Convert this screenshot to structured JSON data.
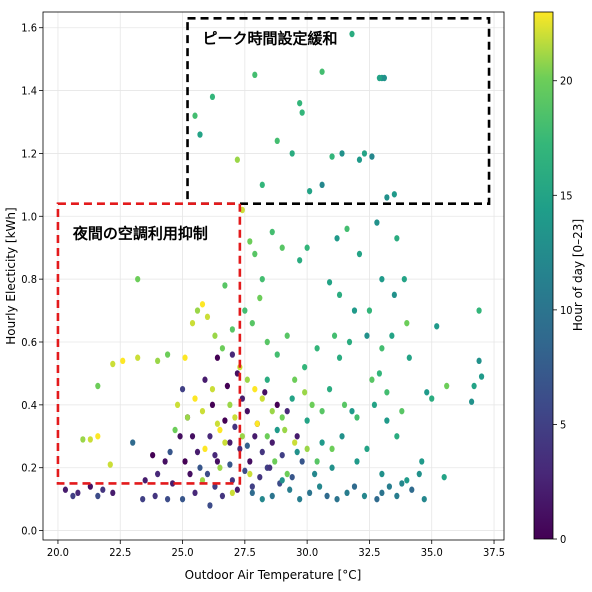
{
  "chart_data": {
    "type": "scatter",
    "xlabel": "Outdoor Air Temperature [°C]",
    "ylabel": "Hourly Electicity [kWh]",
    "colorbar_label": "Hour of day [0–23]",
    "colormap": "viridis",
    "xlim": [
      19.4,
      37.9
    ],
    "ylim": [
      -0.03,
      1.65
    ],
    "x_ticks": [
      20.0,
      22.5,
      25.0,
      27.5,
      30.0,
      32.5,
      35.0,
      37.5
    ],
    "x_tick_labels": [
      "20.0",
      "22.5",
      "25.0",
      "27.5",
      "30.0",
      "32.5",
      "35.0",
      "37.5"
    ],
    "y_ticks": [
      0.0,
      0.2,
      0.4,
      0.6,
      0.8,
      1.0,
      1.2,
      1.4,
      1.6
    ],
    "y_tick_labels": [
      "0.0",
      "0.2",
      "0.4",
      "0.6",
      "0.8",
      "1.0",
      "1.2",
      "1.4",
      "1.6"
    ],
    "colorbar_range": [
      0,
      23
    ],
    "colorbar_ticks": [
      0,
      5,
      10,
      15,
      20
    ],
    "colorbar_tick_labels": [
      "0",
      "5",
      "10",
      "15",
      "20"
    ],
    "grid": true,
    "annotations": [
      {
        "text": "ピーク時間設定緩和",
        "box": {
          "x0": 25.2,
          "x1": 37.3,
          "y0": 1.04,
          "y1": 1.63
        },
        "box_color": "#000000",
        "style": "dashed",
        "text_at": [
          25.8,
          1.55
        ]
      },
      {
        "text": "夜間の空調利用抑制",
        "box": {
          "x0": 20.0,
          "x1": 27.3,
          "y0": 0.15,
          "y1": 1.04
        },
        "box_color": "#e31a1c",
        "style": "dashed",
        "text_at": [
          20.6,
          0.93
        ]
      }
    ],
    "series": [
      {
        "points": [
          [
            25.1,
            0.22,
            0
          ],
          [
            25.3,
            0.18,
            1
          ],
          [
            25.6,
            0.25,
            2
          ],
          [
            26.1,
            0.3,
            3
          ],
          [
            26.4,
            0.22,
            1
          ],
          [
            26.7,
            0.35,
            0
          ],
          [
            26.9,
            0.28,
            2
          ],
          [
            27.1,
            0.33,
            4
          ],
          [
            27.3,
            0.26,
            3
          ],
          [
            27.6,
            0.38,
            1
          ],
          [
            27.9,
            0.3,
            2
          ],
          [
            28.2,
            0.25,
            4
          ],
          [
            28.4,
            0.2,
            5
          ],
          [
            26.2,
            0.4,
            0
          ],
          [
            26.5,
            0.32,
            23
          ],
          [
            25.8,
            0.38,
            22
          ],
          [
            25.4,
            0.3,
            1
          ],
          [
            26.8,
            0.46,
            0
          ],
          [
            27.4,
            0.42,
            2
          ],
          [
            25.0,
            0.45,
            5
          ],
          [
            26.0,
            0.18,
            6
          ],
          [
            26.3,
            0.14,
            5
          ],
          [
            27.0,
            0.16,
            4
          ],
          [
            27.5,
            0.19,
            6
          ],
          [
            27.8,
            0.14,
            5
          ],
          [
            28.1,
            0.17,
            4
          ],
          [
            24.6,
            0.15,
            2
          ],
          [
            24.3,
            0.22,
            1
          ],
          [
            24.0,
            0.18,
            3
          ],
          [
            23.8,
            0.24,
            0
          ],
          [
            23.5,
            0.16,
            2
          ],
          [
            25.5,
            0.12,
            3
          ],
          [
            26.6,
            0.11,
            4
          ],
          [
            27.2,
            0.13,
            2
          ],
          [
            24.9,
            0.3,
            1
          ],
          [
            25.2,
            0.36,
            0
          ],
          [
            26.3,
            0.24,
            3
          ],
          [
            27.7,
            0.22,
            1
          ],
          [
            28.0,
            0.34,
            0
          ],
          [
            28.6,
            0.28,
            2
          ],
          [
            20.3,
            0.13,
            2
          ],
          [
            20.8,
            0.12,
            3
          ],
          [
            21.3,
            0.14,
            1
          ],
          [
            21.8,
            0.13,
            4
          ],
          [
            22.2,
            0.12,
            2
          ],
          [
            20.6,
            0.11,
            5
          ],
          [
            21.6,
            0.11,
            6
          ],
          [
            23.4,
            0.1,
            5
          ],
          [
            23.9,
            0.11,
            4
          ],
          [
            24.4,
            0.1,
            6
          ],
          [
            28.3,
            0.44,
            1
          ],
          [
            28.8,
            0.4,
            0
          ],
          [
            29.2,
            0.38,
            3
          ],
          [
            29.6,
            0.3,
            2
          ],
          [
            27.2,
            0.5,
            1
          ],
          [
            26.4,
            0.55,
            0
          ],
          [
            25.9,
            0.48,
            2
          ],
          [
            27.0,
            0.56,
            3
          ],
          [
            28.5,
            0.2,
            4
          ],
          [
            29.0,
            0.24,
            5
          ],
          [
            24.5,
            0.25,
            7
          ],
          [
            25.7,
            0.2,
            7
          ],
          [
            26.9,
            0.21,
            7
          ],
          [
            28.9,
            0.15,
            6
          ],
          [
            29.4,
            0.17,
            7
          ],
          [
            27.6,
            0.27,
            8
          ],
          [
            26.1,
            0.08,
            6
          ],
          [
            25.0,
            0.1,
            7
          ],
          [
            23.0,
            0.28,
            9
          ],
          [
            29.8,
            0.22,
            7
          ]
        ]
      },
      {
        "points": [
          [
            27.8,
            0.12,
            9
          ],
          [
            28.6,
            0.11,
            10
          ],
          [
            29.3,
            0.13,
            11
          ],
          [
            30.1,
            0.12,
            10
          ],
          [
            30.8,
            0.11,
            9
          ],
          [
            31.6,
            0.12,
            11
          ],
          [
            32.3,
            0.11,
            12
          ],
          [
            33.0,
            0.12,
            10
          ],
          [
            33.6,
            0.11,
            11
          ],
          [
            34.2,
            0.13,
            9
          ],
          [
            34.7,
            0.1,
            12
          ],
          [
            29.7,
            0.1,
            11
          ],
          [
            31.2,
            0.1,
            10
          ],
          [
            32.8,
            0.1,
            9
          ],
          [
            28.2,
            0.1,
            12
          ],
          [
            30.5,
            0.14,
            12
          ],
          [
            31.9,
            0.14,
            9
          ],
          [
            33.3,
            0.14,
            11
          ],
          [
            29.0,
            0.16,
            13
          ],
          [
            30.3,
            0.18,
            12
          ],
          [
            31.0,
            0.2,
            13
          ],
          [
            32.0,
            0.22,
            14
          ],
          [
            33.0,
            0.18,
            13
          ],
          [
            34.0,
            0.16,
            14
          ],
          [
            29.6,
            0.25,
            13
          ],
          [
            30.6,
            0.28,
            14
          ],
          [
            31.4,
            0.3,
            13
          ],
          [
            32.4,
            0.26,
            15
          ],
          [
            28.8,
            0.32,
            14
          ],
          [
            30.0,
            0.35,
            15
          ],
          [
            31.8,
            0.38,
            14
          ],
          [
            33.6,
            0.3,
            16
          ],
          [
            29.4,
            0.42,
            15
          ],
          [
            30.9,
            0.45,
            16
          ],
          [
            32.7,
            0.4,
            15
          ],
          [
            28.4,
            0.48,
            16
          ],
          [
            29.9,
            0.52,
            17
          ],
          [
            31.3,
            0.55,
            16
          ],
          [
            32.9,
            0.5,
            17
          ],
          [
            34.1,
            0.55,
            15
          ],
          [
            30.4,
            0.58,
            17
          ],
          [
            31.7,
            0.6,
            16
          ],
          [
            33.4,
            0.62,
            15
          ],
          [
            35.2,
            0.65,
            14
          ],
          [
            36.9,
            0.54,
            13
          ],
          [
            37.0,
            0.49,
            14
          ],
          [
            36.7,
            0.46,
            15
          ],
          [
            36.6,
            0.41,
            13
          ],
          [
            35.0,
            0.42,
            16
          ],
          [
            34.8,
            0.44,
            14
          ],
          [
            35.5,
            0.17,
            15
          ],
          [
            34.6,
            0.22,
            14
          ],
          [
            34.5,
            0.18,
            13
          ],
          [
            33.8,
            0.15,
            12
          ],
          [
            33.2,
            0.35,
            14
          ],
          [
            32.4,
            0.62,
            13
          ],
          [
            31.9,
            0.7,
            14
          ],
          [
            30.9,
            0.79,
            15
          ],
          [
            31.3,
            0.75,
            16
          ],
          [
            32.5,
            0.7,
            17
          ],
          [
            33.0,
            0.8,
            14
          ],
          [
            33.9,
            0.8,
            15
          ],
          [
            33.5,
            0.75,
            13
          ],
          [
            32.1,
            0.88,
            15
          ],
          [
            31.2,
            0.93,
            14
          ],
          [
            29.7,
            0.86,
            16
          ],
          [
            30.0,
            0.9,
            17
          ],
          [
            31.6,
            0.96,
            18
          ],
          [
            32.8,
            0.98,
            13
          ],
          [
            33.6,
            0.93,
            16
          ],
          [
            32.3,
            1.2,
            15
          ],
          [
            32.1,
            1.18,
            14
          ],
          [
            31.4,
            1.2,
            13
          ],
          [
            32.6,
            1.19,
            12
          ],
          [
            33.2,
            1.06,
            13
          ],
          [
            33.5,
            1.07,
            14
          ],
          [
            33.0,
            1.44,
            14
          ],
          [
            33.1,
            1.44,
            13
          ],
          [
            32.9,
            1.44,
            15
          ],
          [
            31.8,
            1.58,
            16
          ],
          [
            30.6,
            1.1,
            12
          ],
          [
            30.1,
            1.08,
            15
          ],
          [
            29.4,
            1.2,
            16
          ],
          [
            29.7,
            1.36,
            17
          ],
          [
            28.8,
            1.24,
            18
          ],
          [
            28.2,
            1.1,
            17
          ],
          [
            27.9,
            1.45,
            18
          ],
          [
            29.8,
            1.33,
            17
          ],
          [
            30.6,
            1.46,
            18
          ],
          [
            31.0,
            1.19,
            17
          ]
        ]
      },
      {
        "points": [
          [
            25.5,
            1.32,
            18
          ],
          [
            25.7,
            1.26,
            15
          ],
          [
            26.2,
            1.38,
            17
          ],
          [
            27.2,
            1.18,
            21
          ],
          [
            26.7,
            0.78,
            19
          ],
          [
            27.4,
            1.02,
            22
          ],
          [
            27.7,
            0.92,
            20
          ],
          [
            27.9,
            0.88,
            19
          ],
          [
            28.2,
            0.8,
            18
          ],
          [
            28.6,
            0.95,
            18
          ],
          [
            29.0,
            0.9,
            19
          ],
          [
            24.4,
            0.56,
            20
          ],
          [
            24.0,
            0.54,
            21
          ],
          [
            23.2,
            0.55,
            22
          ],
          [
            22.6,
            0.54,
            23
          ],
          [
            22.2,
            0.53,
            22
          ],
          [
            23.2,
            0.8,
            20
          ],
          [
            21.6,
            0.46,
            20
          ],
          [
            21.0,
            0.29,
            21
          ],
          [
            21.3,
            0.29,
            22
          ],
          [
            21.6,
            0.3,
            23
          ],
          [
            22.1,
            0.21,
            22
          ],
          [
            25.1,
            0.55,
            23
          ],
          [
            25.4,
            0.66,
            22
          ],
          [
            25.6,
            0.7,
            21
          ],
          [
            26.0,
            0.68,
            22
          ],
          [
            25.8,
            0.72,
            23
          ],
          [
            26.3,
            0.62,
            21
          ],
          [
            26.6,
            0.58,
            20
          ],
          [
            27.0,
            0.64,
            19
          ],
          [
            27.5,
            0.7,
            18
          ],
          [
            27.8,
            0.66,
            19
          ],
          [
            28.1,
            0.74,
            20
          ],
          [
            28.4,
            0.6,
            19
          ],
          [
            28.8,
            0.56,
            18
          ],
          [
            29.2,
            0.62,
            19
          ],
          [
            29.5,
            0.48,
            20
          ],
          [
            29.9,
            0.44,
            21
          ],
          [
            30.2,
            0.4,
            20
          ],
          [
            30.6,
            0.38,
            19
          ],
          [
            27.3,
            0.52,
            22
          ],
          [
            27.6,
            0.48,
            21
          ],
          [
            27.9,
            0.45,
            23
          ],
          [
            28.2,
            0.42,
            22
          ],
          [
            28.6,
            0.38,
            21
          ],
          [
            29.0,
            0.36,
            20
          ],
          [
            26.2,
            0.45,
            22
          ],
          [
            25.5,
            0.42,
            23
          ],
          [
            24.8,
            0.4,
            22
          ],
          [
            25.2,
            0.36,
            21
          ],
          [
            26.9,
            0.4,
            21
          ],
          [
            27.1,
            0.36,
            22
          ],
          [
            28.0,
            0.34,
            23
          ],
          [
            28.4,
            0.3,
            20
          ],
          [
            29.1,
            0.32,
            21
          ],
          [
            29.5,
            0.28,
            22
          ],
          [
            30.0,
            0.26,
            21
          ],
          [
            27.0,
            0.12,
            22
          ],
          [
            26.5,
            0.2,
            21
          ],
          [
            25.9,
            0.26,
            23
          ],
          [
            26.7,
            0.28,
            22
          ],
          [
            27.4,
            0.3,
            21
          ],
          [
            28.7,
            0.22,
            20
          ],
          [
            26.4,
            0.34,
            22
          ],
          [
            25.8,
            0.16,
            21
          ],
          [
            24.7,
            0.32,
            20
          ],
          [
            27.7,
            0.18,
            22
          ],
          [
            29.2,
            0.18,
            20
          ],
          [
            30.4,
            0.22,
            19
          ],
          [
            31.0,
            0.26,
            20
          ],
          [
            31.5,
            0.4,
            19
          ],
          [
            32.0,
            0.36,
            18
          ],
          [
            32.6,
            0.48,
            19
          ],
          [
            33.0,
            0.58,
            18
          ],
          [
            34.0,
            0.66,
            20
          ],
          [
            33.2,
            0.44,
            18
          ],
          [
            33.8,
            0.38,
            19
          ],
          [
            35.6,
            0.46,
            20
          ],
          [
            36.9,
            0.7,
            17
          ],
          [
            31.1,
            0.62,
            18
          ]
        ]
      }
    ]
  }
}
